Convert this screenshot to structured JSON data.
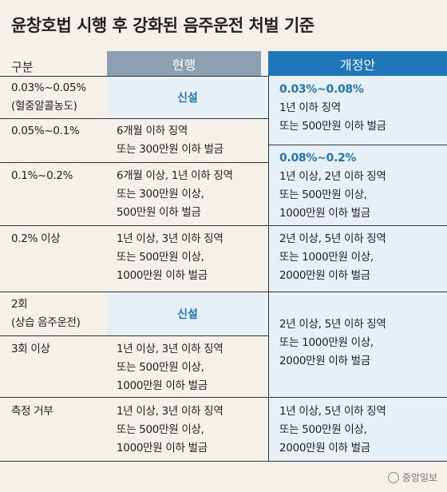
{
  "title": "윤창호법 시행 후 강화된 음주운전 처벌 기준",
  "header": {
    "category": "구분",
    "current": "현행",
    "revised": "개정안"
  },
  "rows": {
    "r1": {
      "label": "0.03%~0.05%\n(혈중알콜농도)",
      "current": "신설"
    },
    "r2": {
      "label": "0.05%~0.1%",
      "current": "6개월 이하 징역\n또는 300만원 이하 벌금"
    },
    "r3": {
      "label": "0.1%~0.2%",
      "current": "6개월 이상, 1년 이하 징역\n또는 300만원 이상,\n500만원 이하 벌금"
    },
    "r4": {
      "label": "0.2% 이상",
      "current": "1년 이상, 3년 이하 징역\n또는 500만원 이상,\n1000만원 이하 벌금",
      "revised": "2년 이상, 5년 이하 징역\n또는 1000만원 이상,\n2000만원 이하 벌금"
    },
    "r5": {
      "label": "2회\n(상습 음주운전)",
      "current": "신설"
    },
    "r6": {
      "label": "3회 이상",
      "current": "1년 이상, 3년 이하 징역\n또는 500만원 이상,\n1000만원 이하 벌금"
    },
    "r7": {
      "label": "측정 거부",
      "current": "1년 이상, 3년 이하 징역\n또는 500만원 이상,\n1000만원 이하 벌금",
      "revised": "1년 이상, 5년 이하 징역\n또는 500만원 이상,\n2000만원 이하 벌금"
    }
  },
  "revised_groups": {
    "g1": {
      "range": "0.03%~0.08%",
      "text": "1년 이하 징역\n또는 500만원 이하 벌금"
    },
    "g2": {
      "range": "0.08%~0.2%",
      "text": "1년 이상, 2년 이하 징역\n또는 500만원 이상,\n1000만원 이하 벌금"
    },
    "g3": {
      "text": "2년 이상, 5년 이하 징역\n또는 1000만원 이상,\n2000만원 이하 벌금"
    }
  },
  "logo": {
    "text": "중앙일보",
    "icon": "joongang-logo-icon"
  },
  "colors": {
    "revised_header": "#1e76bb",
    "current_header": "#8da0b2",
    "highlight_bg": "#e7eff7"
  }
}
